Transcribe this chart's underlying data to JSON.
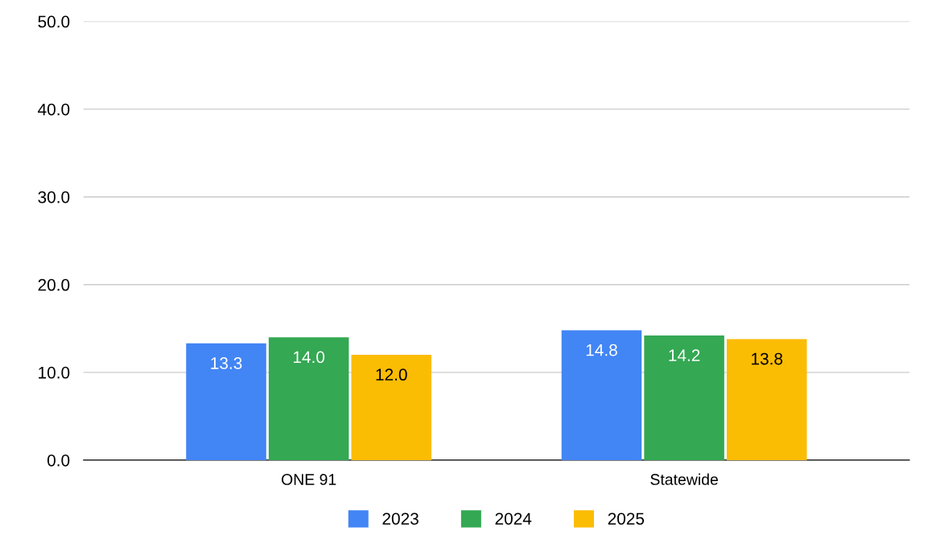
{
  "chart_data": {
    "type": "bar",
    "categories": [
      "ONE 91",
      "Statewide"
    ],
    "series": [
      {
        "name": "2023",
        "color": "#4285f4",
        "values": [
          13.3,
          14.8
        ],
        "value_labels": [
          "13.3",
          "14.8"
        ]
      },
      {
        "name": "2024",
        "color": "#34a853",
        "values": [
          14.0,
          14.2
        ],
        "value_labels": [
          "14.0",
          "14.2"
        ]
      },
      {
        "name": "2025",
        "color": "#fbbc04",
        "values": [
          12.0,
          13.8
        ],
        "value_labels": [
          "12.0",
          "13.8"
        ]
      }
    ],
    "ylim": [
      0,
      50
    ],
    "yticks": [
      {
        "value": 0,
        "label": "0.0"
      },
      {
        "value": 10,
        "label": "10.0"
      },
      {
        "value": 20,
        "label": "20.0"
      },
      {
        "value": 30,
        "label": "30.0"
      },
      {
        "value": 40,
        "label": "40.0"
      },
      {
        "value": 50,
        "label": "50.0"
      }
    ],
    "grid": "y",
    "legend": "bottom"
  }
}
